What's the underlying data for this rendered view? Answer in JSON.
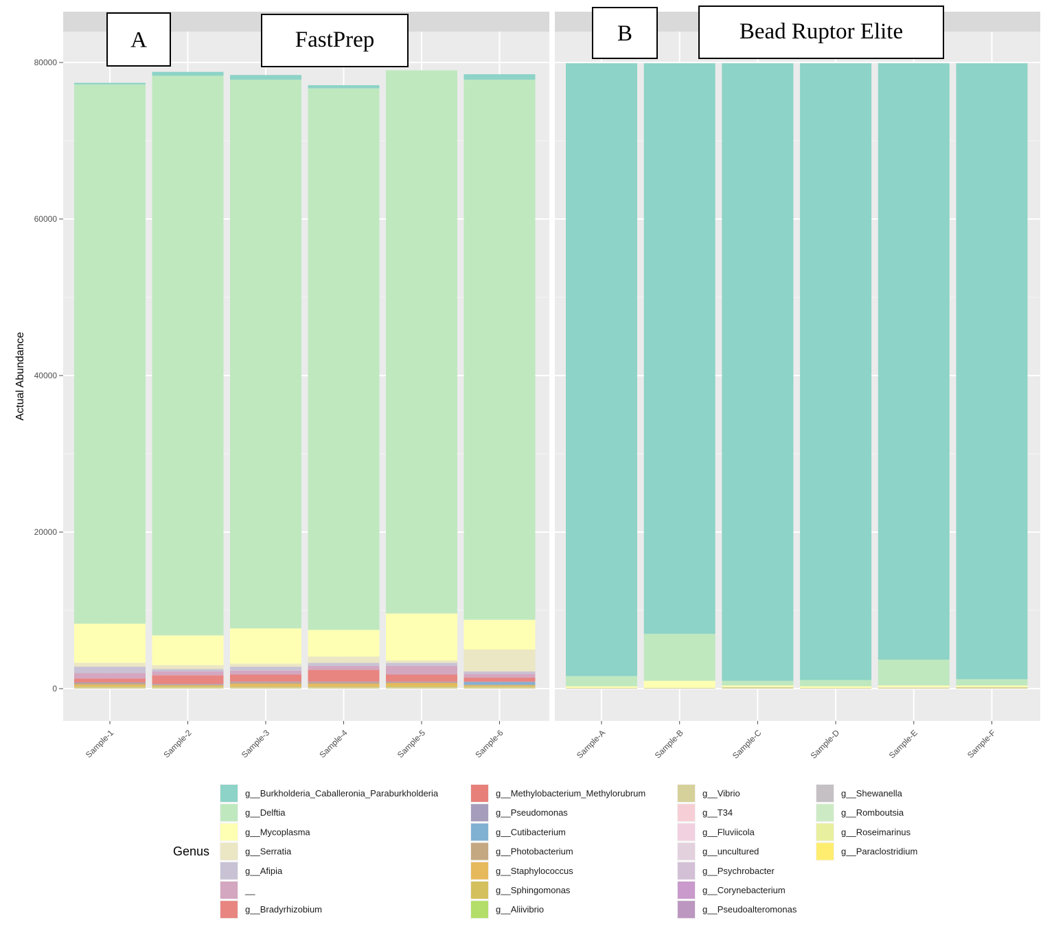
{
  "chart_data": {
    "type": "bar",
    "stacked": true,
    "ylabel": "Actual Abundance",
    "ylim": [
      0,
      80000
    ],
    "yticks": [
      0,
      20000,
      40000,
      60000,
      80000
    ],
    "grid": true,
    "legend_placement": "bottom",
    "legend_title": "Genus",
    "panels": [
      {
        "letter": "A",
        "label": "FastPrep",
        "categories": [
          "Sample-1",
          "Sample-2",
          "Sample-3",
          "Sample-4",
          "Sample-5",
          "Sample-6"
        ],
        "series": [
          {
            "name": "g__Burkholderia_Caballeronia_Paraburkholderia",
            "values": [
              200,
              500,
              600,
              400,
              0,
              700
            ]
          },
          {
            "name": "g__Delftia",
            "values": [
              68900,
              71500,
              70100,
              69200,
              69400,
              69000
            ]
          },
          {
            "name": "g__Mycoplasma",
            "values": [
              5000,
              3800,
              4500,
              3400,
              6000,
              3800
            ]
          },
          {
            "name": "g__Serratia",
            "values": [
              500,
              500,
              400,
              800,
              300,
              2800
            ]
          },
          {
            "name": "g__Afipia",
            "values": [
              800,
              300,
              500,
              400,
              400,
              300
            ]
          },
          {
            "name": "__",
            "values": [
              700,
              500,
              500,
              500,
              1100,
              500
            ]
          },
          {
            "name": "g__Bradyrhizobium",
            "values": [
              500,
              1100,
              900,
              1500,
              900,
              500
            ]
          },
          {
            "name": "g__Methylobacterium_Methylorubrum",
            "values": [
              0,
              0,
              0,
              0,
              0,
              0
            ]
          },
          {
            "name": "g__Pseudomonas",
            "values": [
              100,
              100,
              100,
              100,
              100,
              100
            ]
          },
          {
            "name": "g__Cutibacterium",
            "values": [
              0,
              0,
              0,
              0,
              0,
              300
            ]
          },
          {
            "name": "g__Photobacterium",
            "values": [
              200,
              100,
              200,
              200,
              100,
              100
            ]
          },
          {
            "name": "g__Staphylococcus",
            "values": [
              200,
              100,
              300,
              300,
              300,
              100
            ]
          },
          {
            "name": "g__Sphingomonas",
            "values": [
              100,
              100,
              100,
              100,
              200,
              100
            ]
          },
          {
            "name": "g__Aliivibrio",
            "values": [
              0,
              0,
              0,
              0,
              0,
              0
            ]
          },
          {
            "name": "g__Vibrio",
            "values": [
              200,
              200,
              200,
              200,
              200,
              200
            ]
          },
          {
            "name": "g__T34",
            "values": [
              0,
              0,
              0,
              0,
              0,
              0
            ]
          },
          {
            "name": "g__Fluviicola",
            "values": [
              0,
              0,
              0,
              0,
              0,
              0
            ]
          },
          {
            "name": "g__uncultured",
            "values": [
              0,
              0,
              0,
              0,
              0,
              0
            ]
          },
          {
            "name": "g__Psychrobacter",
            "values": [
              0,
              0,
              0,
              0,
              0,
              0
            ]
          },
          {
            "name": "g__Corynebacterium",
            "values": [
              0,
              0,
              0,
              0,
              0,
              0
            ]
          },
          {
            "name": "g__Pseudoalteromonas",
            "values": [
              0,
              0,
              0,
              0,
              0,
              0
            ]
          },
          {
            "name": "g__Shewanella",
            "values": [
              0,
              0,
              0,
              0,
              0,
              0
            ]
          },
          {
            "name": "g__Romboutsia",
            "values": [
              0,
              0,
              0,
              0,
              0,
              0
            ]
          },
          {
            "name": "g__Roseimarinus",
            "values": [
              0,
              0,
              0,
              0,
              0,
              0
            ]
          },
          {
            "name": "g__Paraclostridium",
            "values": [
              0,
              0,
              0,
              0,
              0,
              0
            ]
          }
        ]
      },
      {
        "letter": "B",
        "label": "Bead Ruptor Elite",
        "categories": [
          "Sample-A",
          "Sample-B",
          "Sample-C",
          "Sample-D",
          "Sample-E",
          "Sample-F"
        ],
        "series": [
          {
            "name": "g__Burkholderia_Caballeronia_Paraburkholderia",
            "values": [
              78300,
              72900,
              78900,
              78800,
              76200,
              78700
            ]
          },
          {
            "name": "g__Delftia",
            "values": [
              1300,
              6000,
              600,
              800,
              3300,
              800
            ]
          },
          {
            "name": "g__Mycoplasma",
            "values": [
              200,
              900,
              200,
              200,
              200,
              200
            ]
          },
          {
            "name": "g__Serratia",
            "values": [
              0,
              0,
              0,
              0,
              100,
              0
            ]
          },
          {
            "name": "g__Afipia",
            "values": [
              0,
              0,
              0,
              0,
              0,
              0
            ]
          },
          {
            "name": "__",
            "values": [
              0,
              0,
              0,
              0,
              0,
              0
            ]
          },
          {
            "name": "g__Bradyrhizobium",
            "values": [
              0,
              0,
              0,
              0,
              0,
              0
            ]
          },
          {
            "name": "g__Methylobacterium_Methylorubrum",
            "values": [
              0,
              0,
              0,
              0,
              0,
              0
            ]
          },
          {
            "name": "g__Pseudomonas",
            "values": [
              0,
              0,
              0,
              0,
              0,
              0
            ]
          },
          {
            "name": "g__Cutibacterium",
            "values": [
              0,
              0,
              0,
              0,
              0,
              0
            ]
          },
          {
            "name": "g__Photobacterium",
            "values": [
              0,
              0,
              0,
              0,
              0,
              0
            ]
          },
          {
            "name": "g__Staphylococcus",
            "values": [
              0,
              0,
              0,
              0,
              0,
              0
            ]
          },
          {
            "name": "g__Sphingomonas",
            "values": [
              0,
              0,
              0,
              0,
              0,
              0
            ]
          },
          {
            "name": "g__Aliivibrio",
            "values": [
              0,
              0,
              0,
              0,
              0,
              0
            ]
          },
          {
            "name": "g__Vibrio",
            "values": [
              100,
              100,
              200,
              100,
              100,
              200
            ]
          },
          {
            "name": "g__T34",
            "values": [
              0,
              0,
              0,
              0,
              0,
              0
            ]
          },
          {
            "name": "g__Fluviicola",
            "values": [
              0,
              0,
              0,
              0,
              0,
              0
            ]
          },
          {
            "name": "g__uncultured",
            "values": [
              0,
              0,
              0,
              0,
              0,
              0
            ]
          },
          {
            "name": "g__Psychrobacter",
            "values": [
              0,
              0,
              0,
              0,
              0,
              0
            ]
          },
          {
            "name": "g__Corynebacterium",
            "values": [
              0,
              0,
              0,
              0,
              0,
              0
            ]
          },
          {
            "name": "g__Pseudoalteromonas",
            "values": [
              0,
              0,
              0,
              0,
              0,
              0
            ]
          },
          {
            "name": "g__Shewanella",
            "values": [
              0,
              0,
              0,
              0,
              0,
              0
            ]
          },
          {
            "name": "g__Romboutsia",
            "values": [
              0,
              0,
              0,
              0,
              0,
              0
            ]
          },
          {
            "name": "g__Roseimarinus",
            "values": [
              0,
              0,
              0,
              0,
              0,
              0
            ]
          },
          {
            "name": "g__Paraclostridium",
            "values": [
              0,
              0,
              0,
              0,
              0,
              0
            ]
          }
        ]
      }
    ],
    "legend": [
      {
        "name": "g__Burkholderia_Caballeronia_Paraburkholderia",
        "color": "#8dd3c7"
      },
      {
        "name": "g__Delftia",
        "color": "#bfe8bf"
      },
      {
        "name": "g__Mycoplasma",
        "color": "#ffffb3"
      },
      {
        "name": "g__Serratia",
        "color": "#ebe6c3"
      },
      {
        "name": "g__Afipia",
        "color": "#c8c2d4"
      },
      {
        "name": "__",
        "color": "#d4a7c0"
      },
      {
        "name": "g__Bradyrhizobium",
        "color": "#e88580"
      },
      {
        "name": "g__Methylobacterium_Methylorubrum",
        "color": "#e8807a"
      },
      {
        "name": "g__Pseudomonas",
        "color": "#a59dbb"
      },
      {
        "name": "g__Cutibacterium",
        "color": "#80b1d3"
      },
      {
        "name": "g__Photobacterium",
        "color": "#c4a882"
      },
      {
        "name": "g__Staphylococcus",
        "color": "#e6b95c"
      },
      {
        "name": "g__Sphingomonas",
        "color": "#d4c05c"
      },
      {
        "name": "g__Aliivibrio",
        "color": "#b3de69"
      },
      {
        "name": "g__Vibrio",
        "color": "#d6d19a"
      },
      {
        "name": "g__T34",
        "color": "#f6cfd6"
      },
      {
        "name": "g__Fluviicola",
        "color": "#f1d0e0"
      },
      {
        "name": "g__uncultured",
        "color": "#e3d1de"
      },
      {
        "name": "g__Psychrobacter",
        "color": "#d3c0d6"
      },
      {
        "name": "g__Corynebacterium",
        "color": "#c99acb"
      },
      {
        "name": "g__Pseudoalteromonas",
        "color": "#bc97c0"
      },
      {
        "name": "g__Shewanella",
        "color": "#c4c0c4"
      },
      {
        "name": "g__Romboutsia",
        "color": "#ccebc5"
      },
      {
        "name": "g__Roseimarinus",
        "color": "#e8ef9e"
      },
      {
        "name": "g__Paraclostridium",
        "color": "#ffed6f"
      }
    ]
  }
}
